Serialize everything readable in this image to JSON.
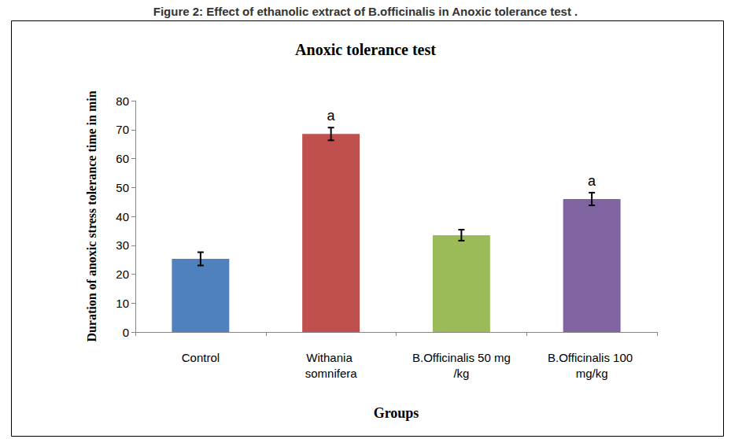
{
  "chart_data": {
    "type": "bar",
    "caption": "Figure 2: Effect of ethanolic extract of B.officinalis in Anoxic tolerance test .",
    "title": "Anoxic tolerance test",
    "x_label": "Groups",
    "y_label": "Duration of anoxic stress tolerance time in min",
    "categories": [
      "Control",
      "Withania somnifera",
      "B.Officinalis 50 mg/kg",
      "B.Officinalis 100 mg/kg"
    ],
    "values": [
      25.3,
      68.5,
      33.5,
      46.0
    ],
    "errors": [
      2.3,
      2.2,
      1.9,
      2.2
    ],
    "annotations": [
      null,
      "a",
      null,
      "a"
    ],
    "colors": [
      "#4f81bd",
      "#c0504d",
      "#9bbb59",
      "#8064a2"
    ],
    "ylim": [
      0,
      80
    ],
    "yticks": [
      0,
      10,
      20,
      30,
      40,
      50,
      60,
      70,
      80
    ],
    "grid": false
  }
}
